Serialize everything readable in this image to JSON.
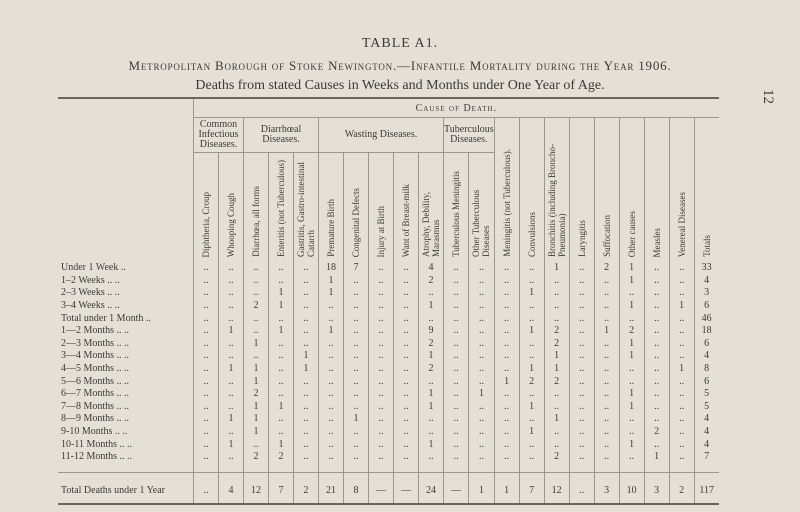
{
  "page_number": "12",
  "title": "TABLE A1.",
  "subtitle": "Metropolitan Borough of Stoke Newington.—Infantile Mortality during the Year 1906.",
  "subtitle2": "Deaths from stated Causes in Weeks and Months under One Year of Age.",
  "cause_header": "Cause of Death.",
  "groups": [
    {
      "label": "Common Infectious Diseases.",
      "span": 2
    },
    {
      "label": "Diarrhœal Diseases.",
      "span": 3
    },
    {
      "label": "Wasting Diseases.",
      "span": 5
    },
    {
      "label": "Tuberculous Diseases.",
      "span": 2
    }
  ],
  "columns": [
    "Diphtheria, Croup",
    "Whooping Cough",
    "Diarrhœa, all forms",
    "Enteritis (not Tuberculous)",
    "Gastritis, Gastro-intestinal Catarrh",
    "Premature Birth",
    "Congenital Defects",
    "Injury at Birth",
    "Want of Breast-milk",
    "Atrophy, Debility, Marasmus",
    "Tuberculous Meningitis",
    "Other Tuberculous Diseases",
    "Meningitis (not Tuberculous).",
    "Convulsions",
    "Bronchitis (including Broncho-Pneumonia)",
    "Laryngitis",
    "Suffocation",
    "Other causes",
    "Measles",
    "Venereal Diseases",
    "Totals"
  ],
  "rows": [
    {
      "label": "Under 1 Week  ..",
      "cells": [
        "..",
        "..",
        "..",
        "..",
        "..",
        "18",
        "7",
        "..",
        "..",
        "4",
        "..",
        "..",
        "..",
        "..",
        "1",
        "..",
        "2",
        "1",
        "..",
        "..",
        "33"
      ]
    },
    {
      "label": " 1–2 Weeks  ..  ..",
      "cells": [
        "..",
        "..",
        "..",
        "..",
        "..",
        "1",
        "..",
        "..",
        "..",
        "2",
        "..",
        "..",
        "..",
        "..",
        "..",
        "..",
        "..",
        "1",
        "..",
        "..",
        "4"
      ]
    },
    {
      "label": " 2–3 Weeks  ..  ..",
      "cells": [
        "..",
        "..",
        "..",
        "1",
        "..",
        "1",
        "..",
        "..",
        "..",
        "..",
        "..",
        "..",
        "..",
        "1",
        "..",
        "..",
        "..",
        "..",
        "..",
        "..",
        "3"
      ]
    },
    {
      "label": " 3–4 Weeks  ..  ..",
      "cells": [
        "..",
        "..",
        "2",
        "1",
        "..",
        "..",
        "..",
        "..",
        "..",
        "1",
        "..",
        "..",
        "..",
        "..",
        "..",
        "..",
        "..",
        "1",
        "..",
        "1",
        "6"
      ]
    },
    {
      "label": "Total under 1 Month ..",
      "cells": [
        "..",
        "..",
        "..",
        "..",
        "..",
        "..",
        "..",
        "..",
        "..",
        "..",
        "..",
        "..",
        "..",
        "..",
        "..",
        "..",
        "..",
        "..",
        "..",
        "..",
        "46"
      ]
    },
    {
      "label": " 1—2 Months  ..  ..",
      "cells": [
        "..",
        "1",
        "..",
        "1",
        "..",
        "1",
        "..",
        "..",
        "..",
        "9",
        "..",
        "..",
        "..",
        "1",
        "2",
        "..",
        "1",
        "2",
        "..",
        "..",
        "18"
      ]
    },
    {
      "label": " 2—3 Months  ..  ..",
      "cells": [
        "..",
        "..",
        "1",
        "..",
        "..",
        "..",
        "..",
        "..",
        "..",
        "2",
        "..",
        "..",
        "..",
        "..",
        "2",
        "..",
        "..",
        "1",
        "..",
        "..",
        "6"
      ]
    },
    {
      "label": " 3—4 Months  ..  ..",
      "cells": [
        "..",
        "..",
        "..",
        "..",
        "1",
        "..",
        "..",
        "..",
        "..",
        "1",
        "..",
        "..",
        "..",
        "..",
        "1",
        "..",
        "..",
        "1",
        "..",
        "..",
        "4"
      ]
    },
    {
      "label": " 4—5 Months  ..  ..",
      "cells": [
        "..",
        "1",
        "1",
        "..",
        "1",
        "..",
        "..",
        "..",
        "..",
        "2",
        "..",
        "..",
        "..",
        "1",
        "1",
        "..",
        "..",
        "..",
        "..",
        "1",
        "8"
      ]
    },
    {
      "label": " 5—6 Months  ..  ..",
      "cells": [
        "..",
        "..",
        "1",
        "..",
        "..",
        "..",
        "..",
        "..",
        "..",
        "..",
        "..",
        "..",
        "1",
        "2",
        "2",
        "..",
        "..",
        "..",
        "..",
        "..",
        "6"
      ]
    },
    {
      "label": " 6—7 Months  ..  ..",
      "cells": [
        "..",
        "..",
        "2",
        "..",
        "..",
        "..",
        "..",
        "..",
        "..",
        "1",
        "..",
        "1",
        "..",
        "..",
        "..",
        "..",
        "..",
        "1",
        "..",
        "..",
        "5"
      ]
    },
    {
      "label": " 7—8 Months  ..  ..",
      "cells": [
        "..",
        "..",
        "1",
        "1",
        "..",
        "..",
        "..",
        "..",
        "..",
        "1",
        "..",
        "..",
        "..",
        "1",
        "..",
        "..",
        "..",
        "1",
        "..",
        "..",
        "5"
      ]
    },
    {
      "label": " 8—9 Months  ..  ..",
      "cells": [
        "..",
        "1",
        "1",
        "..",
        "..",
        "..",
        "1",
        "..",
        "..",
        "..",
        "..",
        "..",
        "..",
        "..",
        "1",
        "..",
        "..",
        "..",
        "..",
        "..",
        "4"
      ]
    },
    {
      "label": " 9-10 Months  ..  ..",
      "cells": [
        "..",
        "..",
        "1",
        "..",
        "..",
        "..",
        "..",
        "..",
        "..",
        "..",
        "..",
        "..",
        "..",
        "1",
        "..",
        "..",
        "..",
        "..",
        "2",
        "..",
        "4"
      ]
    },
    {
      "label": "10-11 Months  ..  ..",
      "cells": [
        "..",
        "1",
        "..",
        "1",
        "..",
        "..",
        "..",
        "..",
        "..",
        "1",
        "..",
        "..",
        "..",
        "..",
        "..",
        "..",
        "..",
        "1",
        "..",
        "..",
        "4"
      ]
    },
    {
      "label": "11-12 Months  ..  ..",
      "cells": [
        "..",
        "..",
        "2",
        "2",
        "..",
        "..",
        "..",
        "..",
        "..",
        "..",
        "..",
        "..",
        "..",
        "..",
        "2",
        "..",
        "..",
        "..",
        "1",
        "..",
        "7"
      ]
    }
  ],
  "total_row": {
    "label": "Total Deaths under 1 Year",
    "cells": [
      "..",
      "4",
      "12",
      "7",
      "2",
      "21",
      "8",
      "—",
      "—",
      "24",
      "—",
      "1",
      "1",
      "7",
      "12",
      "..",
      "3",
      "10",
      "3",
      "2",
      "117"
    ]
  }
}
